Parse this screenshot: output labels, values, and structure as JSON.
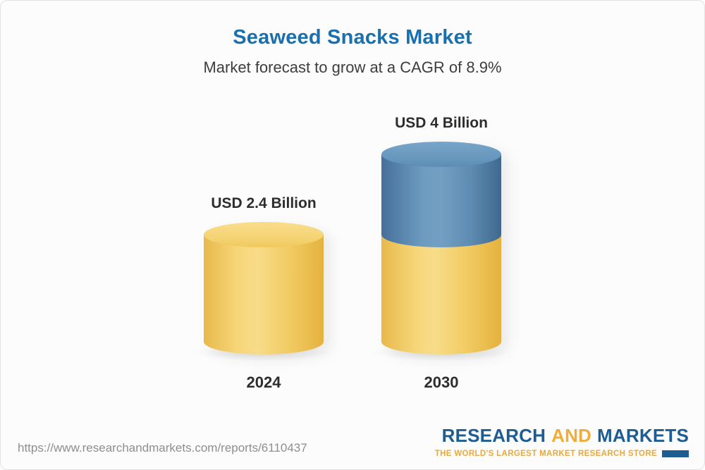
{
  "header": {
    "title": "Seaweed Snacks Market",
    "subtitle": "Market forecast to grow at a CAGR of 8.9%"
  },
  "chart_data": {
    "type": "bar",
    "title": "Seaweed Snacks Market",
    "subtitle": "Market forecast to grow at a CAGR of 8.9%",
    "unit": "USD Billion",
    "cagr": "8.9%",
    "categories": [
      "2024",
      "2030"
    ],
    "values": [
      2.4,
      4
    ],
    "ylim": [
      0,
      4
    ],
    "legend": "none",
    "grid": false,
    "bars": [
      {
        "category": "2024",
        "value": 2.4,
        "label": "USD 2.4 Billion",
        "segments": [
          {
            "name": "base-value",
            "value": 2.4,
            "color": "#f3cd69"
          }
        ]
      },
      {
        "category": "2030",
        "value": 4,
        "label": "USD 4 Billion",
        "segments": [
          {
            "name": "forecast-growth",
            "value": 1.6,
            "color": "#5d8fb5"
          },
          {
            "name": "base-value",
            "value": 2.4,
            "color": "#f3cd69"
          }
        ]
      }
    ]
  },
  "footer": {
    "url": "https://www.researchandmarkets.com/reports/6110437",
    "logo": {
      "research": "RESEARCH",
      "and": "AND",
      "markets": "MARKETS",
      "tagline": "THE WORLD'S LARGEST MARKET RESEARCH STORE"
    }
  },
  "colors": {
    "title_blue": "#1a6fae",
    "bar_yellow": "#f3cd69",
    "bar_blue": "#5d8fb5",
    "logo_navy": "#1e5d91",
    "logo_gold": "#efae3a",
    "text_dark": "#2d2d2d",
    "url_gray": "#8e8e8e"
  }
}
